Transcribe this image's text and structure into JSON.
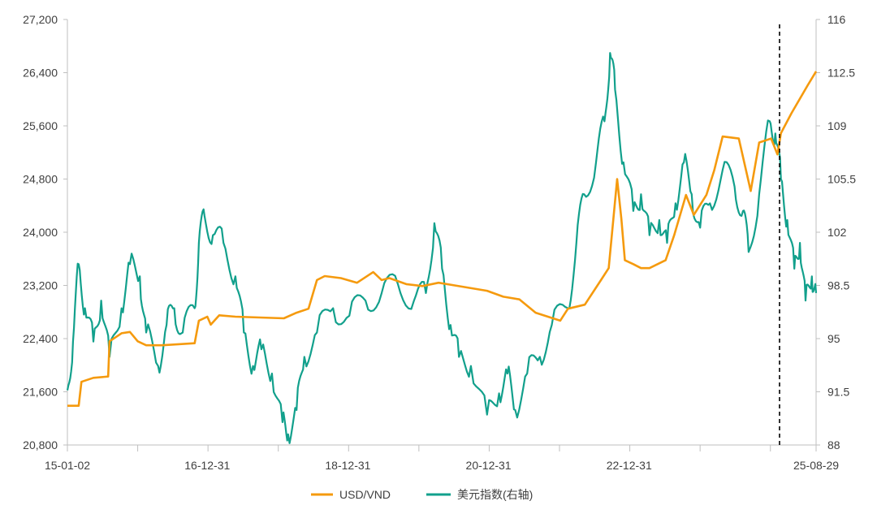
{
  "chart_data": {
    "type": "line",
    "title": "",
    "x_ticks": [
      "15-01-02",
      "16-12-31",
      "18-12-31",
      "20-12-31",
      "22-12-31",
      "25-08-29"
    ],
    "x_tick_years": [
      2015.0,
      2016.99,
      2018.99,
      2020.99,
      2022.99,
      2025.65
    ],
    "xlim": [
      2015.0,
      2025.65
    ],
    "ylim_left": [
      20800,
      27200
    ],
    "ylim_right": [
      88,
      116
    ],
    "y_ticks_left": [
      "20,800",
      "21,600",
      "22,400",
      "23,200",
      "24,000",
      "24,800",
      "25,600",
      "26,400",
      "27,200"
    ],
    "y_ticks_right": [
      "88",
      "91.5",
      "95",
      "98.5",
      "102",
      "105.5",
      "109",
      "112.5",
      "116"
    ],
    "dashed_line_x": 2025.13,
    "legend_position": "bottom",
    "series": [
      {
        "name": "USD/VND",
        "axis": "left",
        "color": "#F59A0E",
        "x": [
          2015.0,
          2015.16,
          2015.2,
          2015.37,
          2015.58,
          2015.6,
          2015.77,
          2015.89,
          2016.0,
          2016.12,
          2016.35,
          2016.81,
          2016.87,
          2016.99,
          2017.04,
          2017.16,
          2017.39,
          2018.08,
          2018.26,
          2018.43,
          2018.55,
          2018.66,
          2018.89,
          2019.12,
          2019.35,
          2019.47,
          2019.58,
          2019.82,
          2020.05,
          2020.28,
          2020.51,
          2020.97,
          2021.2,
          2021.43,
          2021.66,
          2022.01,
          2022.12,
          2022.36,
          2022.59,
          2022.7,
          2022.82,
          2022.88,
          2022.93,
          2023.05,
          2023.16,
          2023.28,
          2023.51,
          2023.63,
          2023.8,
          2023.91,
          2024.09,
          2024.2,
          2024.32,
          2024.55,
          2024.72,
          2024.84,
          2025.01,
          2025.1,
          2025.15,
          2025.3,
          2025.53,
          2025.65
        ],
        "y": [
          21390,
          21390,
          21750,
          21810,
          21830,
          22360,
          22480,
          22500,
          22360,
          22300,
          22300,
          22330,
          22670,
          22730,
          22610,
          22750,
          22730,
          22705,
          22790,
          22850,
          23280,
          23340,
          23310,
          23240,
          23400,
          23280,
          23310,
          23220,
          23190,
          23240,
          23200,
          23120,
          23030,
          22990,
          22790,
          22670,
          22850,
          22910,
          23280,
          23460,
          24800,
          24200,
          23580,
          23520,
          23460,
          23460,
          23580,
          23950,
          24560,
          24260,
          24560,
          24930,
          25440,
          25410,
          24620,
          25350,
          25410,
          25170,
          25490,
          25790,
          26210,
          26420
        ]
      },
      {
        "name": "美元指数(右轴)",
        "axis": "right",
        "color": "#12A08C",
        "x": [
          2015.0,
          2015.08,
          2015.16,
          2015.25,
          2015.37,
          2015.48,
          2015.6,
          2015.77,
          2015.89,
          2016.03,
          2016.12,
          2016.29,
          2016.41,
          2016.52,
          2016.64,
          2016.81,
          2016.87,
          2016.95,
          2017.07,
          2017.22,
          2017.39,
          2017.51,
          2017.64,
          2017.76,
          2017.91,
          2018.06,
          2018.14,
          2018.26,
          2018.37,
          2018.55,
          2018.78,
          2019.01,
          2019.24,
          2019.47,
          2019.7,
          2019.93,
          2020.1,
          2020.22,
          2020.33,
          2020.45,
          2020.57,
          2020.74,
          2020.97,
          2021.14,
          2021.26,
          2021.37,
          2021.54,
          2021.72,
          2021.89,
          2022.12,
          2022.24,
          2022.35,
          2022.52,
          2022.64,
          2022.72,
          2022.79,
          2022.91,
          2023.05,
          2023.16,
          2023.28,
          2023.42,
          2023.53,
          2023.65,
          2023.77,
          2023.88,
          2024.0,
          2024.14,
          2024.32,
          2024.49,
          2024.61,
          2024.69,
          2024.84,
          2024.99,
          2025.07,
          2025.15,
          2025.24,
          2025.34,
          2025.42,
          2025.5,
          2025.59,
          2025.65
        ],
        "y": [
          91.6,
          94.8,
          99.9,
          97.0,
          94.8,
          97.5,
          93.8,
          97.0,
          99.9,
          99.1,
          95.4,
          93.2,
          95.9,
          97.0,
          95.4,
          97.0,
          101.3,
          103.1,
          101.8,
          101.3,
          99.1,
          95.4,
          93.2,
          94.3,
          92.7,
          89.5,
          88.7,
          90.3,
          93.8,
          95.4,
          97.0,
          96.5,
          97.5,
          98.0,
          98.6,
          97.5,
          98.0,
          102.6,
          99.6,
          95.9,
          93.8,
          93.2,
          90.0,
          91.4,
          92.7,
          90.3,
          92.7,
          93.8,
          95.9,
          97.0,
          101.3,
          104.5,
          106.6,
          109.3,
          113.8,
          111.4,
          106.6,
          103.4,
          104.5,
          101.8,
          102.8,
          101.3,
          103.9,
          106.6,
          104.5,
          102.3,
          103.9,
          106.1,
          105.0,
          103.4,
          100.7,
          104.5,
          109.3,
          108.5,
          105.5,
          102.8,
          99.6,
          101.3,
          97.5,
          99.1,
          98.0
        ]
      }
    ]
  }
}
